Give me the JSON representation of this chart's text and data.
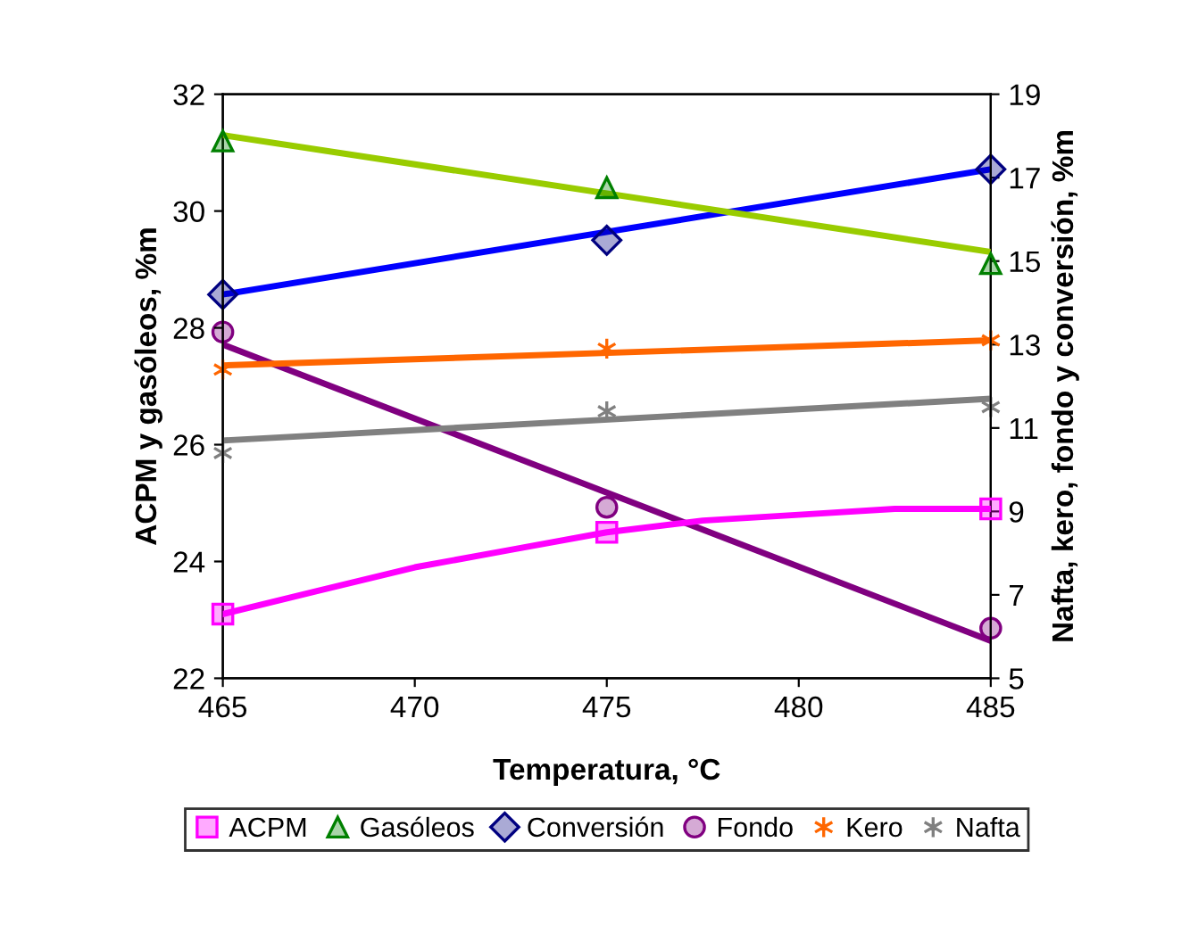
{
  "chart_data": {
    "type": "scatter",
    "xlabel": "Temperatura, °C",
    "ylabel": "ACPM y gasóleos, %m",
    "y2label": "Nafta, kero, fondo y conversión, %m",
    "xlim": [
      465,
      485
    ],
    "xticks": [
      465,
      470,
      475,
      480,
      485
    ],
    "ylim": [
      22,
      32
    ],
    "yticks": [
      22,
      24,
      26,
      28,
      30,
      32
    ],
    "y2lim": [
      5,
      19
    ],
    "y2ticks": [
      5,
      7,
      9,
      11,
      13,
      15,
      17,
      19
    ],
    "grid": false,
    "legend": "bottom",
    "series": [
      {
        "name": "ACPM",
        "marker": "square",
        "color": "#ff00ff",
        "x": [
          465,
          475,
          485
        ],
        "values": [
          23.1,
          24.5,
          24.9
        ]
      },
      {
        "name": "Gasóleos",
        "marker": "triangle",
        "color": "#008000",
        "x": [
          465,
          475,
          485
        ],
        "values": [
          31.2,
          30.4,
          29.1
        ]
      },
      {
        "name": "Conversión",
        "marker": "diamond",
        "color": "#000080",
        "axis": "y2",
        "x": [
          465,
          475,
          485
        ],
        "values": [
          14.2,
          15.5,
          17.2
        ]
      },
      {
        "name": "Fondo",
        "marker": "circle",
        "color": "#800080",
        "axis": "y2",
        "x": [
          465,
          475,
          485
        ],
        "values": [
          13.3,
          9.1,
          6.2
        ]
      },
      {
        "name": "Kero",
        "marker": "cross",
        "color": "#ff6600",
        "axis": "y2",
        "x": [
          465,
          475,
          485
        ],
        "values": [
          12.4,
          12.9,
          13.1
        ]
      },
      {
        "name": "Nafta",
        "marker": "cross",
        "color": "#808080",
        "axis": "y2",
        "x": [
          465,
          475,
          485
        ],
        "values": [
          10.4,
          11.4,
          11.5
        ]
      },
      {
        "type": "line",
        "color": "#ff00ff",
        "x": [
          465,
          467.5,
          470,
          472.5,
          475,
          477.5,
          480,
          482.5,
          485
        ],
        "values": [
          23.1,
          23.5,
          23.9,
          24.2,
          24.5,
          24.7,
          24.8,
          24.9,
          24.9
        ]
      },
      {
        "type": "line",
        "color": "#99cc00",
        "x": [
          465,
          485
        ],
        "values": [
          31.3,
          29.3
        ]
      },
      {
        "type": "line",
        "color": "#0000ff",
        "axis": "y2",
        "x": [
          465,
          485
        ],
        "values": [
          14.2,
          17.2
        ]
      },
      {
        "type": "line",
        "color": "#800080",
        "axis": "y2",
        "x": [
          465,
          485
        ],
        "values": [
          13.0,
          5.9
        ]
      },
      {
        "type": "line",
        "color": "#ff6600",
        "axis": "y2",
        "x": [
          465,
          485
        ],
        "values": [
          12.5,
          13.1
        ]
      },
      {
        "type": "line",
        "color": "#808080",
        "axis": "y2",
        "x": [
          465,
          485
        ],
        "values": [
          10.7,
          11.7
        ]
      }
    ]
  }
}
